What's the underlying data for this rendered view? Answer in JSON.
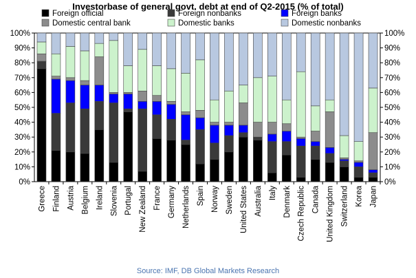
{
  "chart_data": {
    "type": "bar",
    "stacked": true,
    "title": "Investorbase of general govt. debt at end of Q2-2015 (% of total)",
    "source": "Source: IMF, DB Global Markets Research",
    "ylim": [
      0,
      100
    ],
    "yticks": [
      "0%",
      "10%",
      "20%",
      "30%",
      "40%",
      "50%",
      "60%",
      "70%",
      "80%",
      "90%",
      "100%"
    ],
    "legend_position": "top",
    "categories": [
      "Greece",
      "Finland",
      "Austria",
      "Belgium",
      "Ireland",
      "Slovenia",
      "Portugal",
      "New Zealand",
      "France",
      "Germany",
      "Netherlands",
      "Spain",
      "Norway",
      "Sweden",
      "United States",
      "Australia",
      "Italy",
      "Denmark",
      "Czech Republic",
      "Canada",
      "United Kingdom",
      "Switzerland",
      "Korea",
      "Japan"
    ],
    "series": [
      {
        "name": "Foreign official",
        "color": "#000000",
        "values": [
          76,
          21,
          20,
          19,
          35,
          13,
          47,
          7,
          29,
          28,
          25,
          12,
          15,
          20,
          30,
          28,
          6,
          18,
          3,
          15,
          13,
          10,
          3,
          3
        ]
      },
      {
        "name": "Foreign nonbanks",
        "color": "#3a3a3a",
        "values": [
          5,
          25,
          33,
          30,
          19,
          40,
          2,
          42,
          16,
          14,
          3,
          23,
          11,
          11,
          3,
          2,
          21,
          9,
          21,
          9,
          6,
          4,
          7,
          3
        ]
      },
      {
        "name": "Foreign banks",
        "color": "#0000ff",
        "values": [
          0,
          23,
          15,
          16,
          11,
          6,
          10,
          5,
          9,
          10,
          17,
          8,
          12,
          7,
          5,
          0,
          5,
          7,
          5,
          3,
          4,
          1,
          3,
          2
        ]
      },
      {
        "name": "Domestic central bank",
        "color": "#8c8c8c",
        "values": [
          5,
          2,
          2,
          3,
          19,
          1,
          1,
          7,
          4,
          2,
          2,
          5,
          2,
          2,
          15,
          10,
          8,
          5,
          1,
          7,
          24,
          1,
          1,
          25
        ]
      },
      {
        "name": "Domestic banks",
        "color": "#ccf2cc",
        "values": [
          8,
          15,
          21,
          20,
          9,
          35,
          18,
          28,
          20,
          22,
          26,
          34,
          15,
          21,
          12,
          30,
          31,
          16,
          44,
          17,
          8,
          15,
          13,
          30
        ]
      },
      {
        "name": "Domestic nonbanks",
        "color": "#b8c8e0",
        "values": [
          6,
          14,
          9,
          12,
          7,
          5,
          22,
          11,
          22,
          24,
          27,
          18,
          45,
          39,
          35,
          30,
          29,
          45,
          26,
          49,
          45,
          69,
          73,
          37
        ]
      }
    ]
  }
}
